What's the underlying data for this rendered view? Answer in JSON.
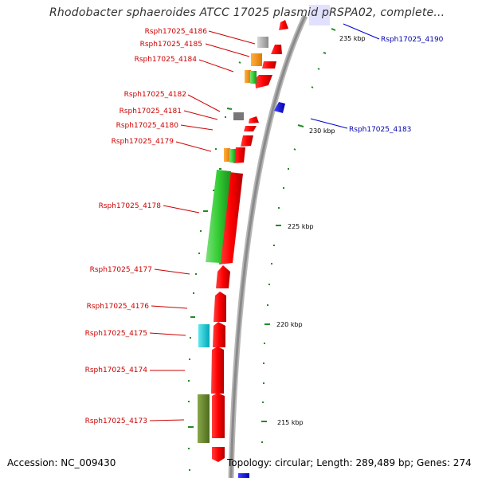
{
  "title": "Rhodobacter sphaeroides ATCC 17025 plasmid pRSPA02, complete...",
  "footer": {
    "accession": "Accession: NC_009430",
    "summary": "Topology: circular; Length: 289,489 bp; Genes: 274"
  },
  "colors": {
    "backbone": "#9a9a9a",
    "cds_forward": "#ff0000",
    "cds_reverse": "#0000ff",
    "label_forward": "#cc0000",
    "label_reverse": "#0000aa",
    "tick": "#228b22"
  },
  "kbp_labels": [
    "235 kbp",
    "230 kbp",
    "225 kbp",
    "220 kbp",
    "215 kbp"
  ],
  "gene_labels_left": [
    "Rsph17025_4186",
    "Rsph17025_4185",
    "Rsph17025_4184",
    "Rsph17025_4182",
    "Rsph17025_4181",
    "Rsph17025_4180",
    "Rsph17025_4179",
    "Rsph17025_4178",
    "Rsph17025_4177",
    "Rsph17025_4176",
    "Rsph17025_4175",
    "Rsph17025_4174",
    "Rsph17025_4173"
  ],
  "gene_labels_right": [
    "Rsph17025_4190",
    "Rsph17025_4183"
  ]
}
